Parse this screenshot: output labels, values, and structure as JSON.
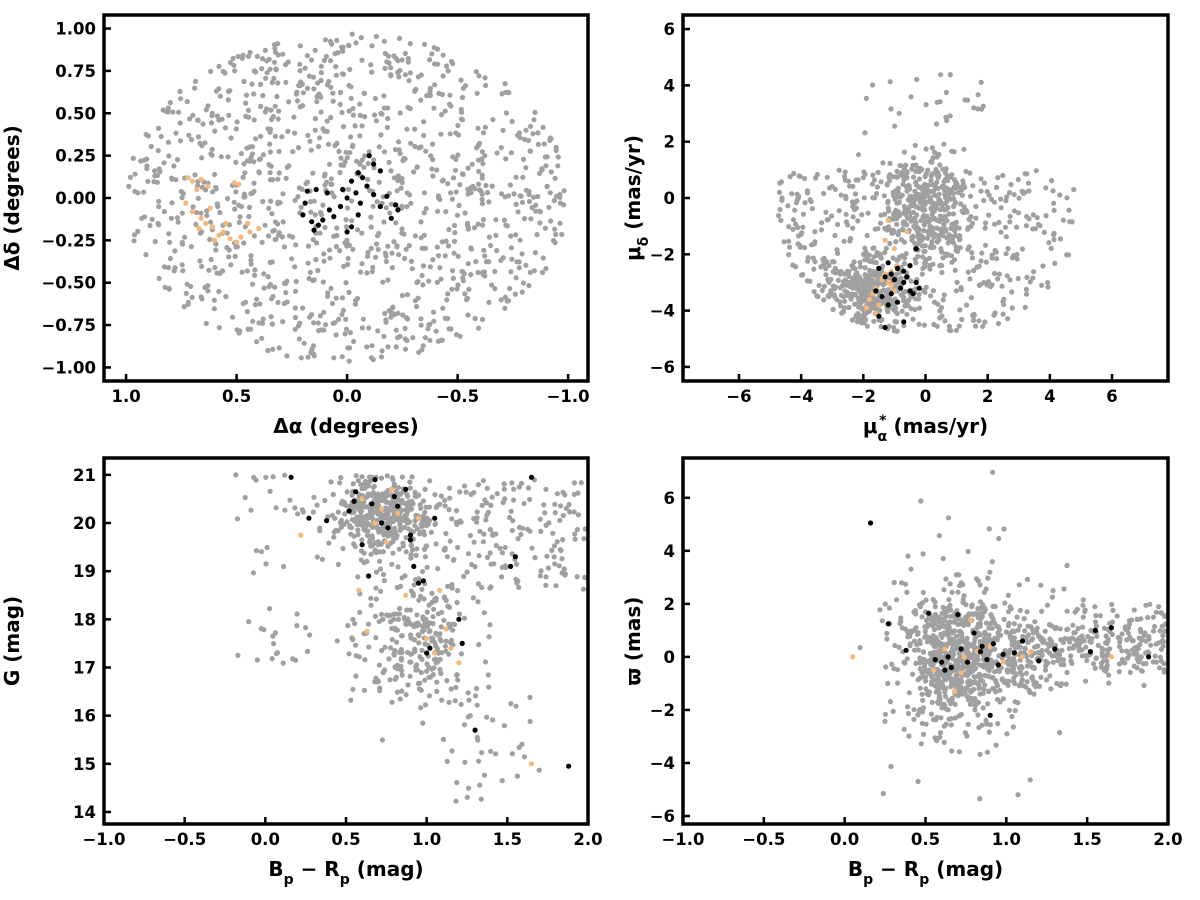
{
  "colors": {
    "field": "#a0a0a0",
    "members": "#000000",
    "stream": "#f5b87a"
  },
  "chart_data": [
    {
      "id": "sky",
      "type": "scatter",
      "xlabel": "Δα (degrees)",
      "ylabel": "Δδ (degrees)",
      "xlim": [
        1.1,
        -1.09
      ],
      "ylim": [
        -1.08,
        1.08
      ],
      "x_reversed": true,
      "xticks": [
        1.0,
        0.5,
        0.0,
        -0.5,
        -1.0
      ],
      "xtick_labels": [
        "1.0",
        "0.5",
        "0.0",
        "−0.5",
        "−1.0"
      ],
      "yticks": [
        -1.0,
        -0.75,
        -0.5,
        -0.25,
        0.0,
        0.25,
        0.5,
        0.75,
        1.0
      ],
      "ytick_labels": [
        "−1.00",
        "−0.75",
        "−0.50",
        "−0.25",
        "0.00",
        "0.25",
        "0.50",
        "0.75",
        "1.00"
      ],
      "grid": false,
      "series": [
        {
          "color": "#a0a0a0",
          "generated": {
            "kind": "disk",
            "n": 1150,
            "cx": 0.0,
            "cy": 0.0,
            "rx": 1.0,
            "ry": 0.97,
            "seed": 11
          }
        },
        {
          "color": "#f5b87a",
          "points": [
            [
              0.72,
              0.12
            ],
            [
              0.7,
              0.1
            ],
            [
              0.68,
              0.05
            ],
            [
              0.66,
              0.11
            ],
            [
              0.63,
              0.07
            ],
            [
              0.73,
              -0.03
            ],
            [
              0.7,
              -0.08
            ],
            [
              0.66,
              -0.12
            ],
            [
              0.64,
              -0.15
            ],
            [
              0.61,
              -0.17
            ],
            [
              0.58,
              -0.22
            ],
            [
              0.6,
              -0.25
            ],
            [
              0.56,
              -0.2
            ],
            [
              0.53,
              -0.24
            ],
            [
              0.5,
              -0.26
            ],
            [
              0.48,
              -0.23
            ],
            [
              0.44,
              -0.2
            ],
            [
              0.4,
              -0.18
            ],
            [
              0.51,
              0.09
            ],
            [
              0.49,
              0.08
            ],
            [
              0.62,
              -0.06
            ],
            [
              0.67,
              -0.18
            ],
            [
              0.55,
              -0.15
            ],
            [
              0.45,
              -0.15
            ]
          ]
        },
        {
          "color": "#000000",
          "points": [
            [
              -0.1,
              0.25
            ],
            [
              -0.12,
              0.2
            ],
            [
              -0.15,
              0.16
            ],
            [
              -0.05,
              0.15
            ],
            [
              -0.07,
              0.12
            ],
            [
              -0.02,
              0.1
            ],
            [
              -0.09,
              0.07
            ],
            [
              -0.12,
              0.02
            ],
            [
              -0.18,
              0.01
            ],
            [
              -0.22,
              -0.04
            ],
            [
              -0.23,
              -0.07
            ],
            [
              -0.04,
              0.03
            ],
            [
              0.0,
              0.0
            ],
            [
              0.03,
              -0.05
            ],
            [
              0.08,
              -0.07
            ],
            [
              0.06,
              -0.11
            ],
            [
              0.11,
              -0.13
            ],
            [
              0.13,
              -0.16
            ],
            [
              0.15,
              -0.19
            ],
            [
              -0.02,
              -0.17
            ],
            [
              -0.05,
              -0.1
            ],
            [
              -0.15,
              -0.05
            ],
            [
              0.16,
              -0.14
            ],
            [
              0.18,
              0.04
            ],
            [
              0.14,
              0.05
            ],
            [
              0.09,
              0.03
            ],
            [
              0.19,
              -0.03
            ],
            [
              0.2,
              -0.1
            ],
            [
              -0.2,
              -0.12
            ],
            [
              -0.06,
              -0.03
            ],
            [
              0.02,
              0.05
            ],
            [
              0.0,
              -0.2
            ]
          ]
        }
      ]
    },
    {
      "id": "proper-motion",
      "type": "scatter",
      "xlabel": "μα* (mas/yr)",
      "ylabel": "μδ (mas/yr)",
      "xlim": [
        -7.8,
        7.8
      ],
      "ylim": [
        -6.5,
        6.5
      ],
      "xticks": [
        -6,
        -4,
        -2,
        0,
        2,
        4,
        6
      ],
      "xtick_labels": [
        "−6",
        "−4",
        "−2",
        "0",
        "2",
        "4",
        "6"
      ],
      "yticks": [
        -6,
        -4,
        -2,
        0,
        2,
        4,
        6
      ],
      "ytick_labels": [
        "−6",
        "−4",
        "−2",
        "0",
        "2",
        "4",
        "6"
      ],
      "grid": false,
      "series": [
        {
          "color": "#a0a0a0",
          "generated": {
            "kind": "pm",
            "n": 1150,
            "seed": 23
          }
        },
        {
          "color": "#f5b87a",
          "points": [
            [
              -1.8,
              -3.6
            ],
            [
              -1.6,
              -3.2
            ],
            [
              -1.4,
              -2.9
            ],
            [
              -1.3,
              -2.7
            ],
            [
              -1.2,
              -3.0
            ],
            [
              -1.0,
              -3.3
            ],
            [
              -1.5,
              -3.8
            ],
            [
              -1.7,
              -3.4
            ],
            [
              -1.1,
              -2.6
            ],
            [
              -0.9,
              -2.4
            ],
            [
              -1.0,
              -1.8
            ],
            [
              -1.2,
              -0.8
            ],
            [
              -1.3,
              -1.5
            ],
            [
              -0.6,
              -1.2
            ],
            [
              -1.9,
              -3.9
            ],
            [
              -1.6,
              -4.1
            ],
            [
              -1.4,
              -3.5
            ],
            [
              -1.1,
              -3.1
            ]
          ]
        },
        {
          "color": "#000000",
          "points": [
            [
              -1.5,
              -2.5
            ],
            [
              -1.3,
              -2.8
            ],
            [
              -1.1,
              -2.7
            ],
            [
              -0.9,
              -2.5
            ],
            [
              -0.7,
              -2.6
            ],
            [
              -0.5,
              -2.4
            ],
            [
              -0.3,
              -1.8
            ],
            [
              -0.3,
              -3.0
            ],
            [
              -0.2,
              -3.2
            ],
            [
              -0.5,
              -3.3
            ],
            [
              -0.7,
              -3.0
            ],
            [
              -0.9,
              -3.7
            ],
            [
              -1.2,
              -3.8
            ],
            [
              -1.4,
              -3.5
            ],
            [
              -1.6,
              -3.3
            ],
            [
              -1.5,
              -4.2
            ],
            [
              -1.3,
              -4.6
            ],
            [
              -0.7,
              -4.4
            ],
            [
              -1.1,
              -3.4
            ],
            [
              -1.0,
              -2.9
            ],
            [
              -0.6,
              -2.8
            ],
            [
              -0.4,
              -3.4
            ],
            [
              -1.2,
              -2.3
            ],
            [
              -0.8,
              -3.2
            ]
          ]
        }
      ]
    },
    {
      "id": "cmd",
      "type": "scatter",
      "xlabel": "Bp − Rp (mag)",
      "ylabel": "G (mag)",
      "xlim": [
        -1.0,
        2.0
      ],
      "ylim": [
        13.75,
        21.35
      ],
      "xticks": [
        -1.0,
        -0.5,
        0.0,
        0.5,
        1.0,
        1.5,
        2.0
      ],
      "xtick_labels": [
        "−1.0",
        "−0.5",
        "0.0",
        "0.5",
        "1.0",
        "1.5",
        "2.0"
      ],
      "yticks": [
        14,
        15,
        16,
        17,
        18,
        19,
        20,
        21
      ],
      "ytick_labels": [
        "14",
        "15",
        "16",
        "17",
        "18",
        "19",
        "20",
        "21"
      ],
      "grid": false,
      "series": [
        {
          "color": "#a0a0a0",
          "generated": {
            "kind": "cmd",
            "n": 950,
            "seed": 37
          }
        },
        {
          "color": "#f5b87a",
          "points": [
            [
              0.22,
              19.75
            ],
            [
              0.58,
              18.6
            ],
            [
              0.63,
              17.75
            ],
            [
              0.68,
              20.0
            ],
            [
              0.72,
              20.3
            ],
            [
              0.78,
              20.7
            ],
            [
              0.82,
              20.2
            ],
            [
              0.87,
              18.5
            ],
            [
              0.95,
              20.1
            ],
            [
              1.0,
              17.6
            ],
            [
              1.05,
              17.3
            ],
            [
              1.08,
              18.6
            ],
            [
              1.12,
              17.8
            ],
            [
              1.15,
              17.4
            ],
            [
              1.2,
              17.1
            ],
            [
              1.65,
              15.0
            ],
            [
              0.75,
              19.6
            ],
            [
              0.6,
              20.5
            ]
          ]
        },
        {
          "color": "#000000",
          "points": [
            [
              0.16,
              20.95
            ],
            [
              0.27,
              20.1
            ],
            [
              0.38,
              20.05
            ],
            [
              0.52,
              20.25
            ],
            [
              0.56,
              20.65
            ],
            [
              0.6,
              19.55
            ],
            [
              0.64,
              18.9
            ],
            [
              0.66,
              20.4
            ],
            [
              0.68,
              20.9
            ],
            [
              0.72,
              20.0
            ],
            [
              0.76,
              19.9
            ],
            [
              0.82,
              20.35
            ],
            [
              0.87,
              20.7
            ],
            [
              0.9,
              19.75
            ],
            [
              0.92,
              19.1
            ],
            [
              0.95,
              18.75
            ],
            [
              0.98,
              18.8
            ],
            [
              1.0,
              17.3
            ],
            [
              1.05,
              20.1
            ],
            [
              1.2,
              18.0
            ],
            [
              1.22,
              17.5
            ],
            [
              1.3,
              15.7
            ],
            [
              1.52,
              19.1
            ],
            [
              1.55,
              19.3
            ],
            [
              1.65,
              20.95
            ],
            [
              1.88,
              14.95
            ],
            [
              0.55,
              20.45
            ],
            [
              0.8,
              20.55
            ],
            [
              0.9,
              19.65
            ],
            [
              1.02,
              17.4
            ]
          ]
        }
      ]
    },
    {
      "id": "parallax",
      "type": "scatter",
      "xlabel": "Bp − Rp (mag)",
      "ylabel": "ϖ (mas)",
      "xlim": [
        -1.0,
        2.0
      ],
      "ylim": [
        -6.3,
        7.5
      ],
      "xticks": [
        -1.0,
        -0.5,
        0.0,
        0.5,
        1.0,
        1.5,
        2.0
      ],
      "xtick_labels": [
        "−1.0",
        "−0.5",
        "0.0",
        "0.5",
        "1.0",
        "1.5",
        "2.0"
      ],
      "yticks": [
        -6,
        -4,
        -2,
        0,
        2,
        4,
        6
      ],
      "ytick_labels": [
        "−6",
        "−4",
        "−2",
        "0",
        "2",
        "4",
        "6"
      ],
      "grid": false,
      "series": [
        {
          "color": "#a0a0a0",
          "generated": {
            "kind": "plx",
            "n": 1150,
            "seed": 53
          }
        },
        {
          "color": "#f5b87a",
          "points": [
            [
              0.05,
              0.0
            ],
            [
              0.62,
              0.3
            ],
            [
              0.68,
              -1.3
            ],
            [
              0.72,
              -0.6
            ],
            [
              0.78,
              1.4
            ],
            [
              0.82,
              0.2
            ],
            [
              0.9,
              0.4
            ],
            [
              0.98,
              -0.2
            ],
            [
              1.05,
              0.1
            ],
            [
              1.1,
              0.0
            ],
            [
              1.15,
              0.2
            ],
            [
              1.65,
              0.0
            ],
            [
              0.55,
              -0.5
            ],
            [
              0.74,
              0.0
            ]
          ]
        },
        {
          "color": "#000000",
          "points": [
            [
              0.16,
              5.05
            ],
            [
              0.27,
              1.25
            ],
            [
              0.38,
              0.25
            ],
            [
              0.52,
              1.65
            ],
            [
              0.56,
              -0.1
            ],
            [
              0.6,
              -0.2
            ],
            [
              0.64,
              0.0
            ],
            [
              0.66,
              -0.4
            ],
            [
              0.7,
              1.6
            ],
            [
              0.72,
              0.3
            ],
            [
              0.76,
              -0.2
            ],
            [
              0.8,
              0.9
            ],
            [
              0.84,
              0.2
            ],
            [
              0.88,
              -0.1
            ],
            [
              0.9,
              -2.2
            ],
            [
              0.92,
              0.5
            ],
            [
              0.95,
              -0.3
            ],
            [
              0.98,
              0.1
            ],
            [
              1.05,
              0.15
            ],
            [
              1.1,
              0.6
            ],
            [
              1.2,
              -0.15
            ],
            [
              1.3,
              0.3
            ],
            [
              1.52,
              0.2
            ],
            [
              1.55,
              1.0
            ],
            [
              1.65,
              1.1
            ],
            [
              1.88,
              0.0
            ],
            [
              0.62,
              -0.5
            ],
            [
              0.85,
              0.4
            ]
          ]
        }
      ]
    }
  ]
}
